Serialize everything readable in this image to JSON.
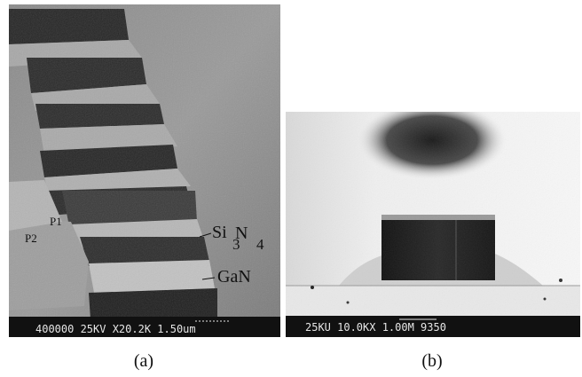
{
  "figure": {
    "panel_a": {
      "caption": "(a)",
      "labels": {
        "p1": "P1",
        "p2": "P2",
        "si3n4_main": "Si",
        "si3n4_sub3": "3",
        "si3n4_n": "N",
        "si3n4_sub4": "4",
        "gan": "GaN"
      },
      "scale_bar_text": "400000 25KV X20.2K 1.50um"
    },
    "panel_b": {
      "caption": "(b)",
      "scale_bar_text": "25KU  10.0KX 1.00M 9350"
    }
  },
  "colors": {
    "sem_dark": "#1a1a1a",
    "sem_mid": "#7a7a7a",
    "sem_light": "#cfcfcf",
    "data_bar": "#111111",
    "data_text": "#e6e6e6"
  }
}
